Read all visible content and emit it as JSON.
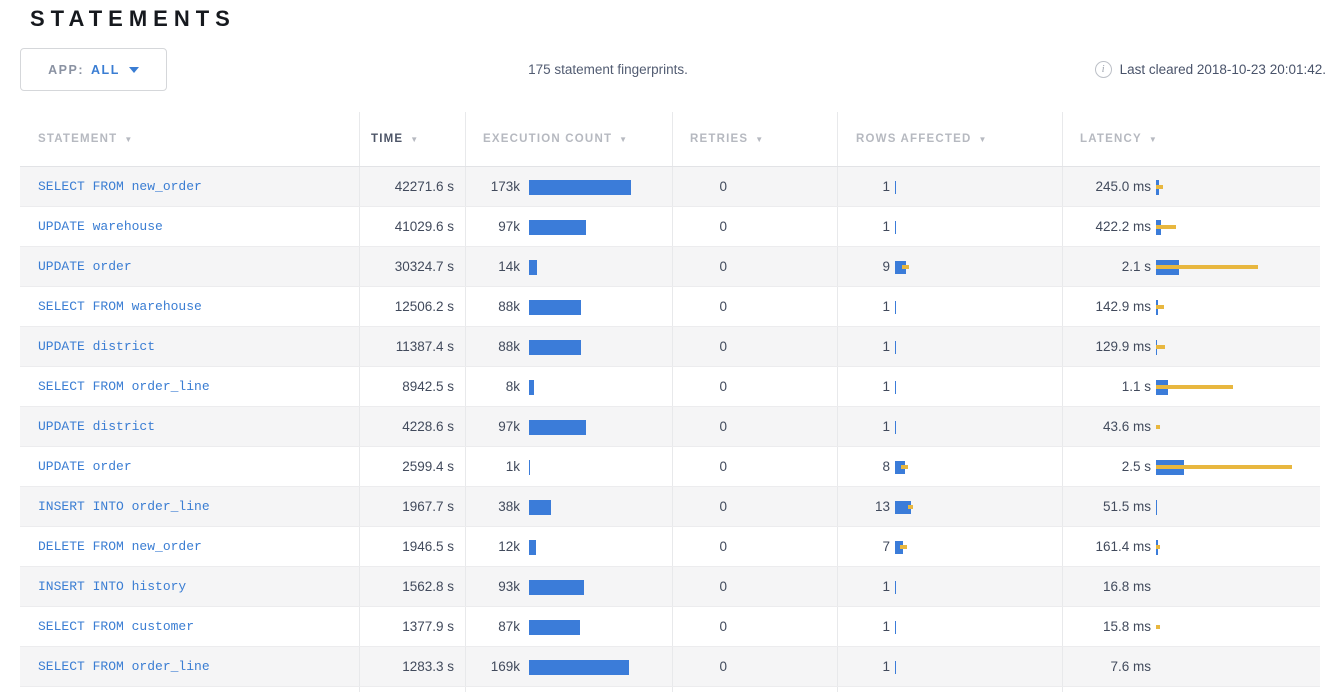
{
  "page_title": "STATEMENTS",
  "toolbar": {
    "app_filter_label": "APP:",
    "app_filter_value": "ALL",
    "summary": "175 statement fingerprints.",
    "info_icon": "info-circle-icon",
    "last_cleared": "Last cleared 2018-10-23 20:01:42."
  },
  "colors": {
    "bar_blue": "#3b7cd9",
    "bar_yellow": "#e8b73f",
    "link_blue": "#3a7dd3"
  },
  "table": {
    "columns": [
      {
        "label": "STATEMENT",
        "sorted": false
      },
      {
        "label": "TIME",
        "sorted": true
      },
      {
        "label": "EXECUTION COUNT",
        "sorted": false
      },
      {
        "label": "RETRIES",
        "sorted": false
      },
      {
        "label": "ROWS AFFECTED",
        "sorted": false
      },
      {
        "label": "LATENCY",
        "sorted": false
      }
    ],
    "sort_icon": "▼",
    "rows": [
      {
        "statement": "SELECT FROM new_order",
        "time": "42271.6 s",
        "exec_count": "173k",
        "exec_k": 173,
        "retries": "0",
        "rows_affected": "1",
        "rows_mean": 1,
        "rows_dev": 0,
        "latency": "245.0 ms",
        "latency_mean_s": 0.245,
        "latency_dev_s": 0.35
      },
      {
        "statement": "UPDATE warehouse",
        "time": "41029.6 s",
        "exec_count": "97k",
        "exec_k": 97,
        "retries": "0",
        "rows_affected": "1",
        "rows_mean": 1,
        "rows_dev": 0,
        "latency": "422.2 ms",
        "latency_mean_s": 0.422,
        "latency_dev_s": 1.4
      },
      {
        "statement": "UPDATE order",
        "time": "30324.7 s",
        "exec_count": "14k",
        "exec_k": 14,
        "retries": "0",
        "rows_affected": "9",
        "rows_mean": 9,
        "rows_dev": 3,
        "latency": "2.1 s",
        "latency_mean_s": 2.1,
        "latency_dev_s": 7.2
      },
      {
        "statement": "SELECT FROM warehouse",
        "time": "12506.2 s",
        "exec_count": "88k",
        "exec_k": 88,
        "retries": "0",
        "rows_affected": "1",
        "rows_mean": 1,
        "rows_dev": 0,
        "latency": "142.9 ms",
        "latency_mean_s": 0.143,
        "latency_dev_s": 0.55
      },
      {
        "statement": "UPDATE district",
        "time": "11387.4 s",
        "exec_count": "88k",
        "exec_k": 88,
        "retries": "0",
        "rows_affected": "1",
        "rows_mean": 1,
        "rows_dev": 0,
        "latency": "129.9 ms",
        "latency_mean_s": 0.13,
        "latency_dev_s": 0.65
      },
      {
        "statement": "SELECT FROM order_line",
        "time": "8942.5 s",
        "exec_count": "8k",
        "exec_k": 8,
        "retries": "0",
        "rows_affected": "1",
        "rows_mean": 1,
        "rows_dev": 0,
        "latency": "1.1 s",
        "latency_mean_s": 1.1,
        "latency_dev_s": 5.9
      },
      {
        "statement": "UPDATE district",
        "time": "4228.6 s",
        "exec_count": "97k",
        "exec_k": 97,
        "retries": "0",
        "rows_affected": "1",
        "rows_mean": 1,
        "rows_dev": 0,
        "latency": "43.6 ms",
        "latency_mean_s": 0.0436,
        "latency_dev_s": 0.31
      },
      {
        "statement": "UPDATE order",
        "time": "2599.4 s",
        "exec_count": "1k",
        "exec_k": 1,
        "retries": "0",
        "rows_affected": "8",
        "rows_mean": 8,
        "rows_dev": 3,
        "latency": "2.5 s",
        "latency_mean_s": 2.5,
        "latency_dev_s": 9.9
      },
      {
        "statement": "INSERT INTO order_line",
        "time": "1967.7 s",
        "exec_count": "38k",
        "exec_k": 38,
        "retries": "0",
        "rows_affected": "13",
        "rows_mean": 13,
        "rows_dev": 2,
        "latency": "51.5 ms",
        "latency_mean_s": 0.0515,
        "latency_dev_s": 0
      },
      {
        "statement": "DELETE FROM new_order",
        "time": "1946.5 s",
        "exec_count": "12k",
        "exec_k": 12,
        "retries": "0",
        "rows_affected": "7",
        "rows_mean": 7,
        "rows_dev": 3,
        "latency": "161.4 ms",
        "latency_mean_s": 0.1614,
        "latency_dev_s": 0.19
      },
      {
        "statement": "INSERT INTO history",
        "time": "1562.8 s",
        "exec_count": "93k",
        "exec_k": 93,
        "retries": "0",
        "rows_affected": "1",
        "rows_mean": 1,
        "rows_dev": 0,
        "latency": "16.8 ms",
        "latency_mean_s": 0.0168,
        "latency_dev_s": 0
      },
      {
        "statement": "SELECT FROM customer",
        "time": "1377.9 s",
        "exec_count": "87k",
        "exec_k": 87,
        "retries": "0",
        "rows_affected": "1",
        "rows_mean": 1,
        "rows_dev": 0,
        "latency": "15.8 ms",
        "latency_mean_s": 0.0158,
        "latency_dev_s": 0.3
      },
      {
        "statement": "SELECT FROM order_line",
        "time": "1283.3 s",
        "exec_count": "169k",
        "exec_k": 169,
        "retries": "0",
        "rows_affected": "1",
        "rows_mean": 1,
        "rows_dev": 0,
        "latency": "7.6 ms",
        "latency_mean_s": 0.0076,
        "latency_dev_s": 0
      }
    ]
  }
}
